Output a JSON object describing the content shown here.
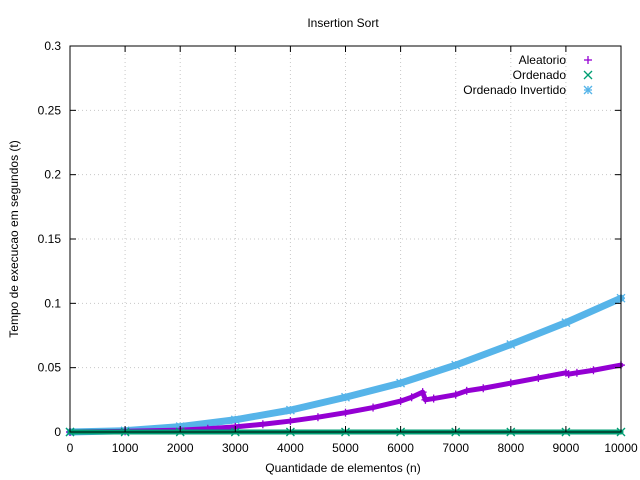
{
  "chart_data": {
    "type": "scatter",
    "title": "Insertion Sort",
    "xlabel": "Quantidade de elementos (n)",
    "ylabel": "Tempo de execucao em segundos (t)",
    "xlim": [
      0,
      10000
    ],
    "ylim": [
      0,
      0.3
    ],
    "xticks": [
      "0",
      "1000",
      "2000",
      "3000",
      "4000",
      "5000",
      "6000",
      "7000",
      "8000",
      "9000",
      "10000"
    ],
    "yticks": [
      "0",
      "0.05",
      "0.1",
      "0.15",
      "0.2",
      "0.25",
      "0.3"
    ],
    "grid": true,
    "legend_position": "top-right",
    "series": [
      {
        "name": "Aleatorio",
        "marker": "+",
        "color": "#9400d3",
        "x": [
          0,
          1000,
          2000,
          2500,
          3000,
          3500,
          4000,
          4500,
          5000,
          5500,
          6000,
          6200,
          6400,
          6450,
          6600,
          7000,
          7200,
          7500,
          8000,
          8500,
          9000,
          9050,
          9200,
          9500,
          10000
        ],
        "y": [
          0,
          0.0005,
          0.0015,
          0.0025,
          0.004,
          0.006,
          0.0085,
          0.0115,
          0.015,
          0.019,
          0.024,
          0.027,
          0.031,
          0.025,
          0.026,
          0.029,
          0.032,
          0.034,
          0.038,
          0.042,
          0.046,
          0.045,
          0.046,
          0.048,
          0.052
        ]
      },
      {
        "name": "Ordenado",
        "marker": "x",
        "color": "#009e73",
        "x": [
          0,
          1000,
          2000,
          3000,
          4000,
          5000,
          6000,
          7000,
          8000,
          9000,
          10000
        ],
        "y": [
          0,
          0,
          0,
          0,
          0,
          0,
          0,
          0,
          0,
          0,
          0
        ]
      },
      {
        "name": "Ordenado Invertido",
        "marker": "*",
        "color": "#56b4e9",
        "x": [
          0,
          1000,
          2000,
          3000,
          4000,
          5000,
          6000,
          7000,
          8000,
          9000,
          10000
        ],
        "y": [
          0,
          0.001,
          0.0042,
          0.0095,
          0.017,
          0.027,
          0.038,
          0.052,
          0.068,
          0.085,
          0.104
        ]
      }
    ]
  }
}
